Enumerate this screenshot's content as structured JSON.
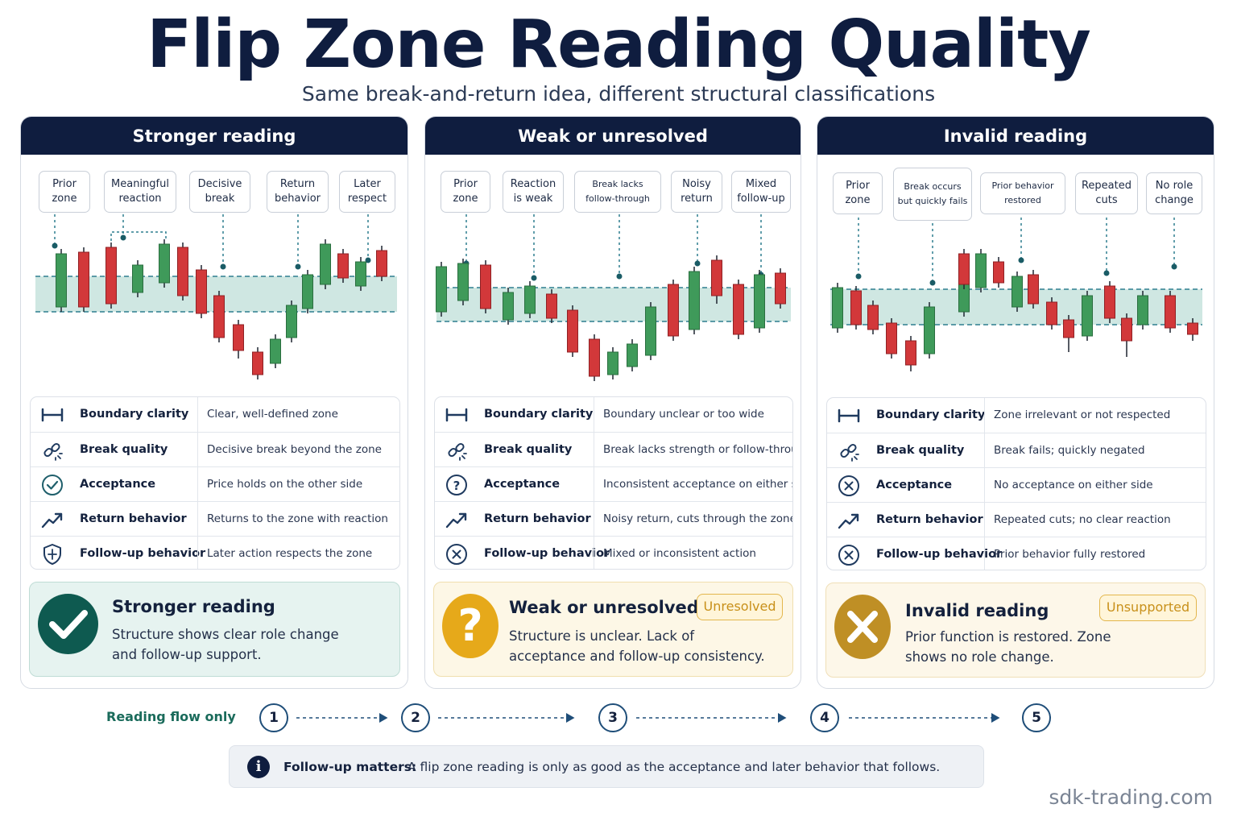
{
  "title": "Flip Zone Reading Quality",
  "subtitle": "Same break-and-return idea, different structural classifications",
  "colors": {
    "navy": "#0f1d3f",
    "bull": "#3f9a5a",
    "bear": "#d2383a",
    "zone": "#cfe7e2",
    "zone_line": "#2f7f8f",
    "teal_check": "#0e5a50",
    "amber": "#e6a91a",
    "olive": "#bf8f25"
  },
  "panels": [
    {
      "header": "Stronger reading",
      "labels": [
        "Prior zone",
        "Meaningful reaction",
        "Decisive break",
        "Return behavior",
        "Later respect"
      ],
      "criteria": [
        {
          "icon": "boundary-icon",
          "name": "Boundary clarity",
          "desc": "Clear, well-defined zone"
        },
        {
          "icon": "link-break-icon",
          "name": "Break quality",
          "desc": "Decisive break beyond the zone"
        },
        {
          "icon": "check-circle-icon",
          "name": "Acceptance",
          "desc": "Price holds on the other side"
        },
        {
          "icon": "trend-up-icon",
          "name": "Return behavior",
          "desc": "Returns to the zone with reaction"
        },
        {
          "icon": "shield-check-icon",
          "name": "Follow-up behavior",
          "desc": "Later action respects the zone"
        }
      ],
      "verdict": {
        "icon": "checkmark-icon",
        "title": "Stronger reading",
        "badge": "",
        "desc": "Structure shows clear role change and follow-up support."
      }
    },
    {
      "header": "Weak or unresolved",
      "labels": [
        "Prior zone",
        "Reaction is weak",
        "Break lacks follow-through",
        "Noisy return",
        "Mixed follow-up"
      ],
      "criteria": [
        {
          "icon": "boundary-icon",
          "name": "Boundary clarity",
          "desc": "Boundary unclear or too wide"
        },
        {
          "icon": "link-break-icon",
          "name": "Break quality",
          "desc": "Break lacks strength or follow-through"
        },
        {
          "icon": "question-circle-icon",
          "name": "Acceptance",
          "desc": "Inconsistent acceptance on either side"
        },
        {
          "icon": "trend-up-icon",
          "name": "Return behavior",
          "desc": "Noisy return, cuts through the zone"
        },
        {
          "icon": "x-circle-icon",
          "name": "Follow-up behavior",
          "desc": "Mixed or inconsistent action"
        }
      ],
      "verdict": {
        "icon": "question-mark-icon",
        "title": "Weak or unresolved",
        "badge": "Unresolved",
        "desc": "Structure is unclear. Lack of acceptance and follow-up consistency."
      }
    },
    {
      "header": "Invalid reading",
      "labels": [
        "Prior zone",
        "Break occurs but quickly fails",
        "Prior behavior restored",
        "Repeated cuts",
        "No role change"
      ],
      "criteria": [
        {
          "icon": "boundary-icon",
          "name": "Boundary clarity",
          "desc": "Zone irrelevant or not respected"
        },
        {
          "icon": "link-break-icon",
          "name": "Break quality",
          "desc": "Break fails; quickly negated"
        },
        {
          "icon": "x-circle-icon",
          "name": "Acceptance",
          "desc": "No acceptance on either side"
        },
        {
          "icon": "trend-up-icon",
          "name": "Return behavior",
          "desc": "Repeated cuts; no clear reaction"
        },
        {
          "icon": "x-circle-icon",
          "name": "Follow-up behavior",
          "desc": "Prior behavior fully restored"
        }
      ],
      "verdict": {
        "icon": "x-mark-icon",
        "title": "Invalid reading",
        "badge": "Unsupported",
        "desc": "Prior function is restored. Zone shows no role change."
      }
    }
  ],
  "flow": {
    "label": "Reading flow only",
    "steps": [
      "1",
      "2",
      "3",
      "4",
      "5"
    ]
  },
  "note": {
    "bold": "Follow-up matters:",
    "text": "A flip zone reading is only as good as the acceptance and later behavior that follows."
  },
  "watermark": "sdk-trading.com"
}
